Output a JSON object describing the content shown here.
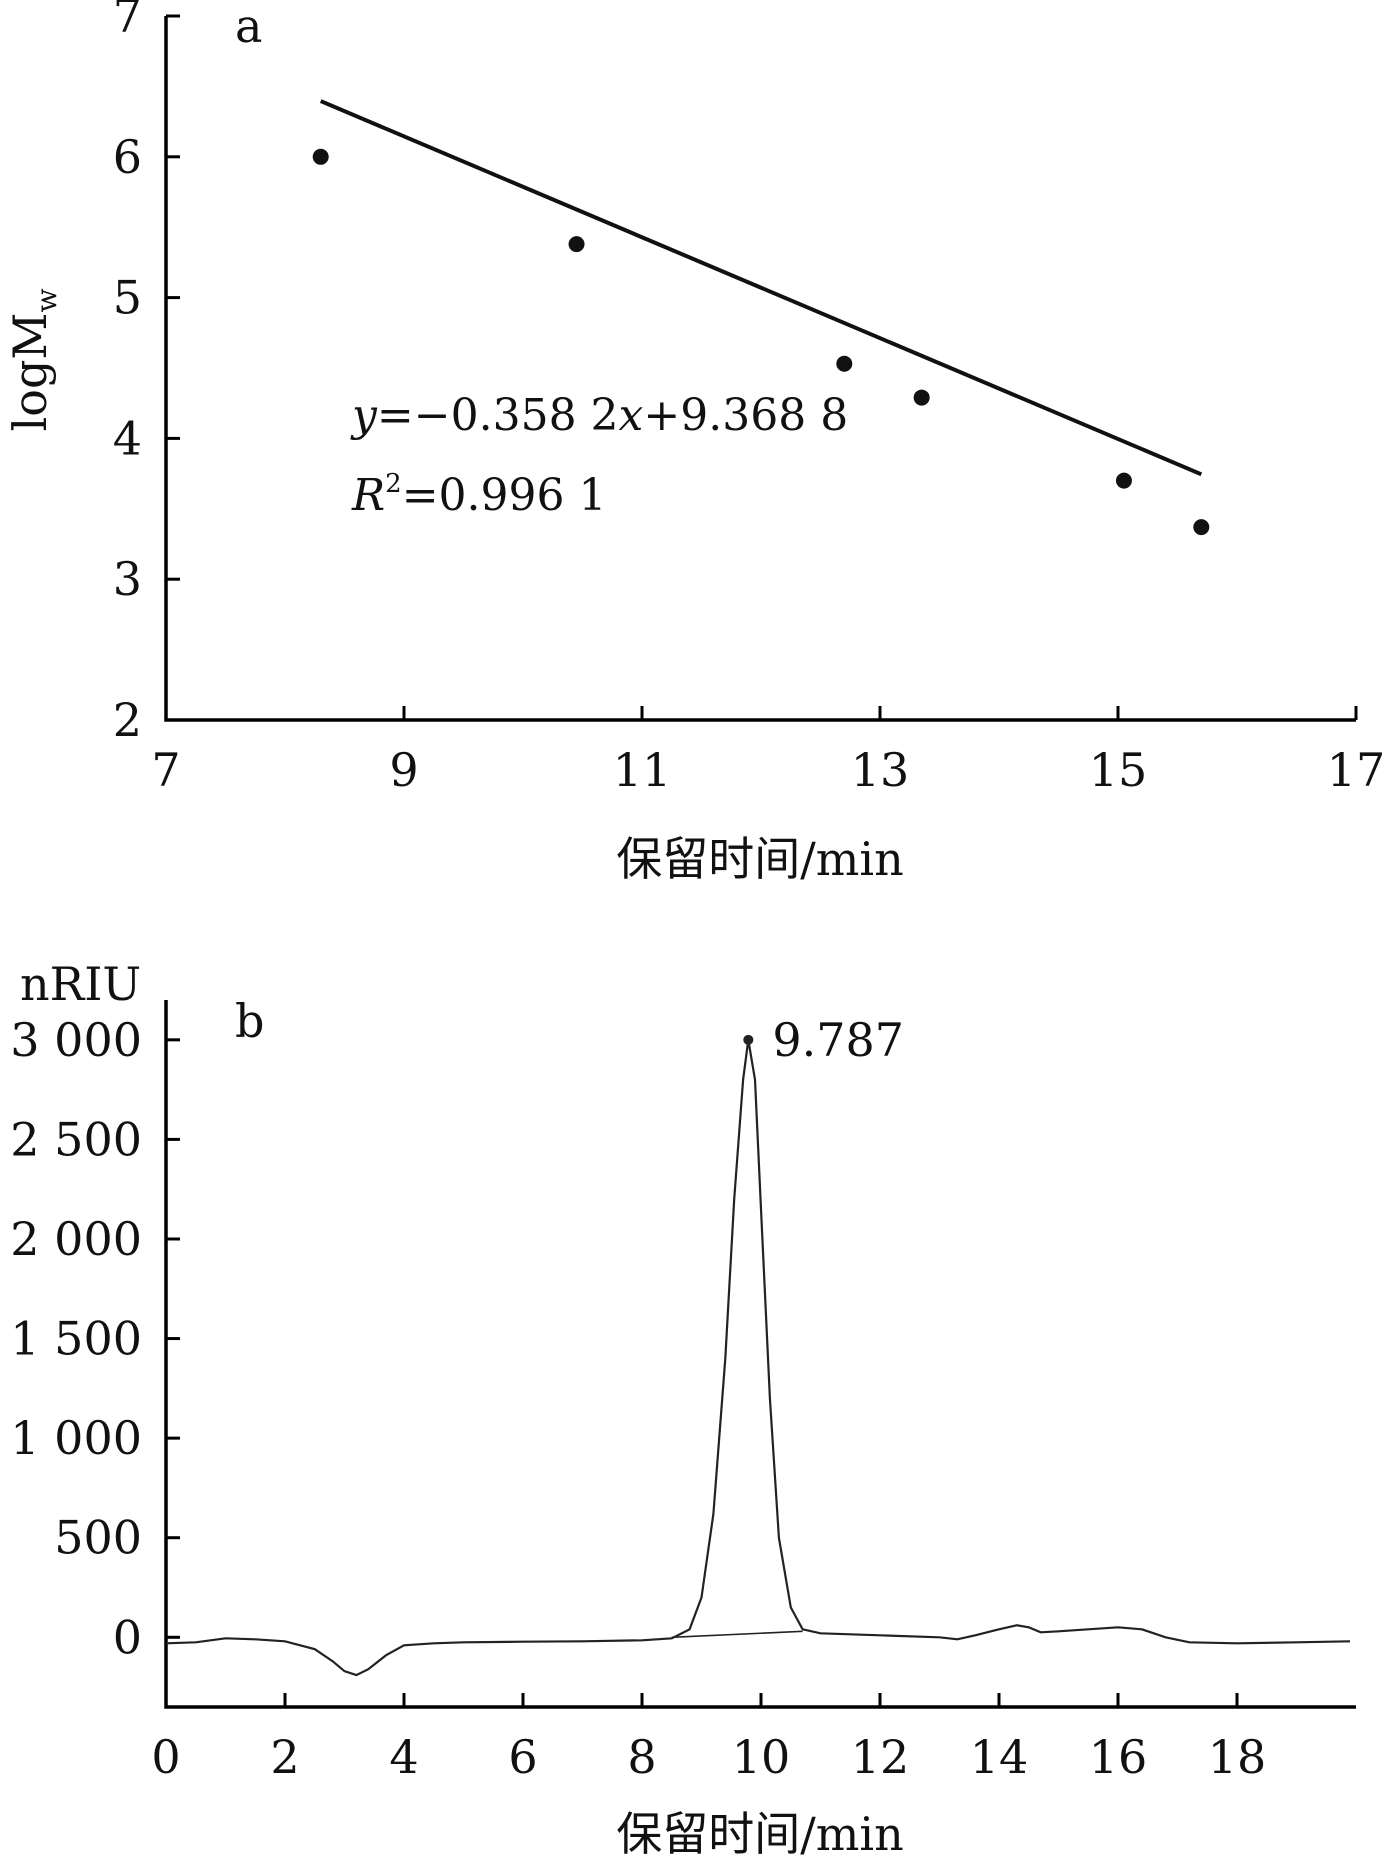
{
  "colors": {
    "ink": "#111111",
    "background": "#ffffff"
  },
  "chart_data": [
    {
      "type": "scatter",
      "panel": "a",
      "xlabel": "保留时间/min",
      "ylabel_main": "logM",
      "ylabel_sub": "w",
      "xlim": [
        7,
        17
      ],
      "ylim": [
        2,
        7
      ],
      "x_ticks": [
        7,
        9,
        11,
        13,
        15,
        17
      ],
      "x_tick_labels": [
        "7",
        "9",
        "11",
        "13",
        "15",
        "17"
      ],
      "y_ticks": [
        2,
        3,
        4,
        5,
        6,
        7
      ],
      "y_tick_labels": [
        "2",
        "3",
        "4",
        "5",
        "6",
        "7"
      ],
      "grid": false,
      "series": [
        {
          "x": [
            8.3,
            10.45,
            12.7,
            13.35,
            15.05,
            15.7
          ],
          "y": [
            6.0,
            5.38,
            4.53,
            4.29,
            3.7,
            3.37
          ]
        }
      ],
      "fit": {
        "slope": -0.3582,
        "intercept": 9.3688,
        "x_range": [
          8.3,
          15.7
        ]
      },
      "equation": {
        "y": "y",
        "eq_mid": "=−0.358 2",
        "x": "x",
        "eq_end": "+9.368 8"
      },
      "r2": {
        "R": "R",
        "sup": "2",
        "val": "=0.996 1"
      }
    },
    {
      "type": "line",
      "panel": "b",
      "unit_label": "nRIU",
      "xlabel": "保留时间/min",
      "xlim": [
        0,
        20
      ],
      "ylim": [
        -350,
        3200
      ],
      "x_ticks": [
        0,
        2,
        4,
        6,
        8,
        10,
        12,
        14,
        16,
        18
      ],
      "x_tick_labels": [
        "0",
        "2",
        "4",
        "6",
        "8",
        "10",
        "12",
        "14",
        "16",
        "18"
      ],
      "y_ticks": [
        0,
        500,
        1000,
        1500,
        2000,
        2500,
        3000
      ],
      "y_tick_labels": [
        "0",
        "500",
        "1 000",
        "1 500",
        "2 000",
        "2 500",
        "3 000"
      ],
      "grid": false,
      "series": [
        {
          "x": [
            0,
            0.5,
            1.0,
            1.5,
            2.0,
            2.5,
            2.8,
            3.0,
            3.2,
            3.4,
            3.7,
            4.0,
            4.5,
            5.0,
            6.0,
            7.0,
            8.0,
            8.5,
            8.8,
            9.0,
            9.2,
            9.4,
            9.55,
            9.7,
            9.787,
            9.9,
            10.0,
            10.15,
            10.3,
            10.5,
            10.7,
            11.0,
            12.0,
            13.0,
            13.3,
            13.6,
            14.0,
            14.3,
            14.5,
            14.7,
            15.0,
            15.5,
            16.0,
            16.4,
            16.8,
            17.2,
            18.0,
            19.0,
            19.9
          ],
          "y": [
            -30,
            -25,
            -5,
            -10,
            -20,
            -60,
            -120,
            -170,
            -190,
            -160,
            -90,
            -40,
            -30,
            -25,
            -22,
            -20,
            -15,
            -5,
            40,
            200,
            620,
            1400,
            2200,
            2800,
            3000,
            2800,
            2150,
            1200,
            500,
            150,
            40,
            20,
            10,
            0,
            -10,
            10,
            40,
            60,
            50,
            25,
            30,
            40,
            50,
            40,
            0,
            -25,
            -30,
            -25,
            -20
          ]
        }
      ],
      "peak_baseline": {
        "x": [
          8.5,
          10.7
        ],
        "y": [
          0,
          30
        ]
      },
      "peak": {
        "x": 9.787,
        "y": 3000,
        "label": "9.787"
      }
    }
  ]
}
